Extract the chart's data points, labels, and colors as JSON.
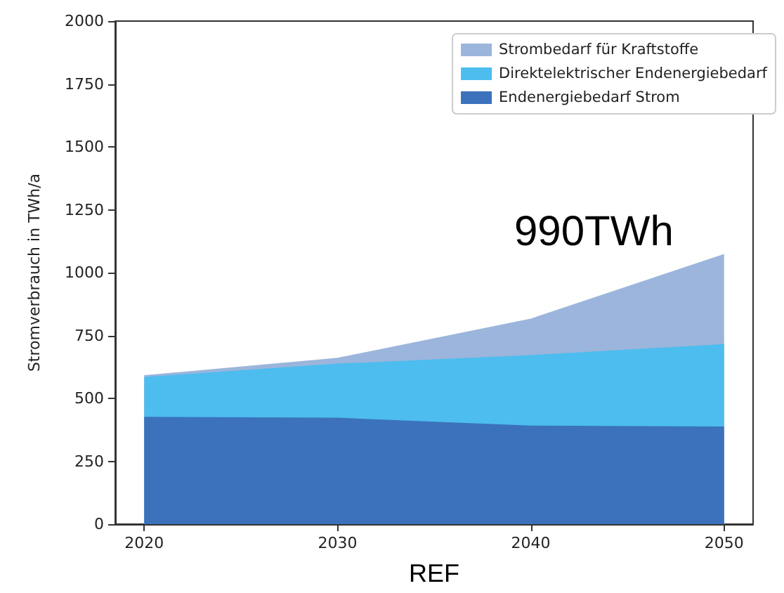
{
  "chart_data": {
    "type": "area",
    "stacked": true,
    "xlabel": "REF",
    "ylabel": "Stromverbrauch in TWh/a",
    "x": [
      2020,
      2030,
      2040,
      2050
    ],
    "series": [
      {
        "name": "Endenergiebedarf Strom",
        "color": "#3b72bb",
        "values": [
          427,
          423,
          392,
          388
        ]
      },
      {
        "name": "Direktelektrischer Endenergiebedarf",
        "color": "#4cbdee",
        "values": [
          158,
          215,
          280,
          328
        ]
      },
      {
        "name": "Strombedarf für Kraftstoffe",
        "color": "#9bb5dc",
        "values": [
          7,
          23,
          145,
          358
        ]
      }
    ],
    "xlim": [
      2018.5,
      2051.5
    ],
    "xticks": [
      2020,
      2030,
      2040,
      2050
    ],
    "ylim": [
      0,
      2000
    ],
    "yticks": [
      0,
      250,
      500,
      750,
      1000,
      1250,
      1500,
      1750,
      2000
    ],
    "legend": "top right",
    "grid": false,
    "annotations": [
      "990TWh"
    ]
  }
}
